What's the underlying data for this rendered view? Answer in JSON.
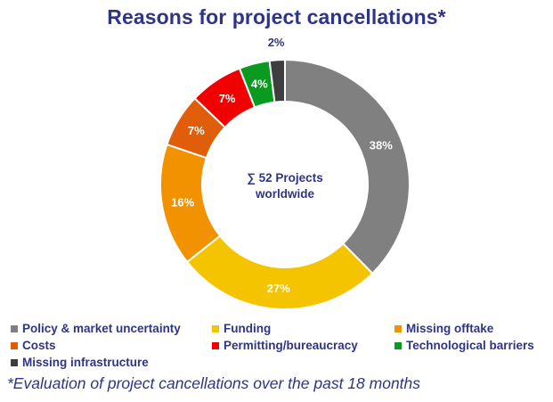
{
  "chart_data": {
    "type": "pie",
    "variant": "donut",
    "title": "Reasons for project cancellations*",
    "center_label": [
      "∑ 52 Projects",
      "worldwide"
    ],
    "slices": [
      {
        "name": "Policy & market uncertainty",
        "value": 38,
        "label": "38%",
        "color": "#808080",
        "label_color": "#ffffff"
      },
      {
        "name": "Funding",
        "value": 27,
        "label": "27%",
        "color": "#f5c400",
        "label_color": "#ffffff"
      },
      {
        "name": "Missing offtake",
        "value": 16,
        "label": "16%",
        "color": "#f39200",
        "label_color": "#ffffff"
      },
      {
        "name": "Costs",
        "value": 7,
        "label": "7%",
        "color": "#e05e0a",
        "label_color": "#ffffff"
      },
      {
        "name": "Permitting/bureaucracy",
        "value": 7,
        "label": "7%",
        "color": "#f20000",
        "label_color": "#ffffff"
      },
      {
        "name": "Technological barriers",
        "value": 4,
        "label": "4%",
        "color": "#0a9a1f",
        "label_color": "#ffffff"
      },
      {
        "name": "Missing infrastructure",
        "value": 2,
        "label": "2%",
        "color": "#3e3e3e",
        "label_color": "#2f3585"
      }
    ],
    "legend_position": "bottom",
    "footnote": "*Evaluation of project cancellations over the past 18 months"
  }
}
